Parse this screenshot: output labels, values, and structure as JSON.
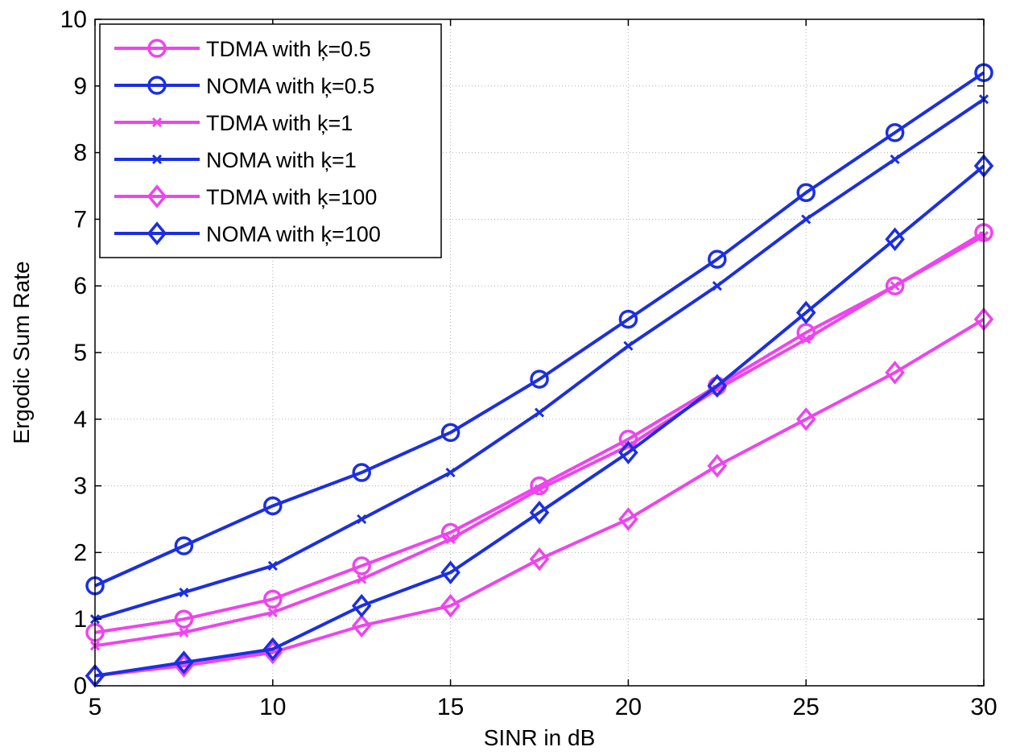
{
  "chart_data": {
    "type": "line",
    "title": "",
    "xlabel": "SINR in dB",
    "ylabel": "Ergodic Sum Rate",
    "xlim": [
      5,
      30
    ],
    "ylim": [
      0,
      10
    ],
    "xticks": [
      5,
      10,
      15,
      20,
      25,
      30
    ],
    "yticks": [
      0,
      1,
      2,
      3,
      4,
      5,
      6,
      7,
      8,
      9,
      10
    ],
    "grid": true,
    "legend_position": "top-left",
    "x": [
      5,
      7.5,
      10,
      12.5,
      15,
      17.5,
      20,
      22.5,
      25,
      27.5,
      30
    ],
    "series": [
      {
        "name": "TDMA with ķ=0.5",
        "color": "#ee44ee",
        "marker": "circle",
        "values": [
          0.8,
          1.0,
          1.3,
          1.8,
          2.3,
          3.0,
          3.7,
          4.5,
          5.3,
          6.0,
          6.8
        ]
      },
      {
        "name": "NOMA with ķ=0.5",
        "color": "#1c2fe0",
        "marker": "circle",
        "values": [
          1.5,
          2.1,
          2.7,
          3.2,
          3.8,
          4.6,
          5.5,
          6.4,
          7.4,
          8.3,
          9.2
        ]
      },
      {
        "name": "TDMA with ķ=1",
        "color": "#ee44ee",
        "marker": "x",
        "values": [
          0.6,
          0.8,
          1.1,
          1.6,
          2.2,
          2.95,
          3.6,
          4.45,
          5.2,
          6.0,
          6.75
        ]
      },
      {
        "name": "NOMA with ķ=1",
        "color": "#1c2fe0",
        "marker": "x",
        "values": [
          1.0,
          1.4,
          1.8,
          2.5,
          3.2,
          4.1,
          5.1,
          6.0,
          7.0,
          7.9,
          8.8
        ]
      },
      {
        "name": "TDMA with ķ=100",
        "color": "#ee44ee",
        "marker": "diamond",
        "values": [
          0.15,
          0.3,
          0.5,
          0.9,
          1.2,
          1.9,
          2.5,
          3.3,
          4.0,
          4.7,
          5.5
        ]
      },
      {
        "name": "NOMA with ķ=100",
        "color": "#1c2fe0",
        "marker": "diamond",
        "values": [
          0.15,
          0.35,
          0.55,
          1.2,
          1.7,
          2.6,
          3.5,
          4.5,
          5.6,
          6.7,
          7.8
        ]
      }
    ]
  }
}
